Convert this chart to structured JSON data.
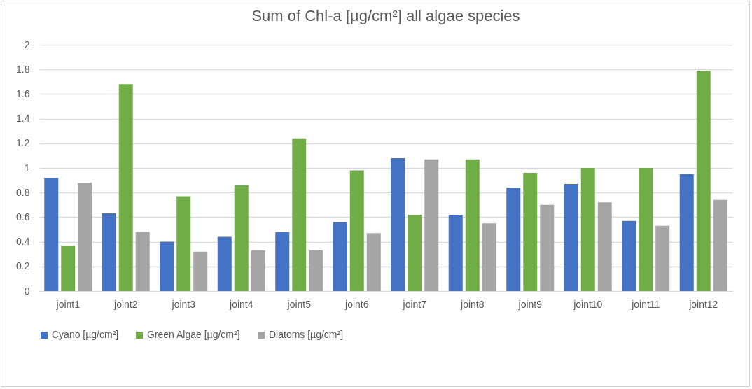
{
  "chart_data": {
    "type": "bar",
    "title": "Sum of Chl-a [µg/cm²] all algae species",
    "categories": [
      "joint1",
      "joint2",
      "joint3",
      "joint4",
      "joint5",
      "joint6",
      "joint7",
      "joint8",
      "joint9",
      "joint10",
      "joint11",
      "joint12"
    ],
    "series": [
      {
        "name": "Cyano [µg/cm²]",
        "color": "#4472c4",
        "values": [
          0.92,
          0.63,
          0.4,
          0.44,
          0.48,
          0.56,
          1.08,
          0.62,
          0.84,
          0.87,
          0.57,
          0.95
        ]
      },
      {
        "name": "Green Algae [µg/cm²]",
        "color": "#70ad47",
        "values": [
          0.37,
          1.68,
          0.77,
          0.86,
          1.24,
          0.98,
          0.62,
          1.07,
          0.96,
          1.0,
          1.0,
          1.79
        ]
      },
      {
        "name": "Diatoms [µg/cm²]",
        "color": "#a5a5a5",
        "values": [
          0.88,
          0.48,
          0.32,
          0.33,
          0.33,
          0.47,
          1.07,
          0.55,
          0.7,
          0.72,
          0.53,
          0.74
        ]
      }
    ],
    "ylim": [
      0,
      2
    ],
    "yticks": [
      0,
      0.2,
      0.4,
      0.6,
      0.8,
      1,
      1.2,
      1.4,
      1.6,
      1.8,
      2
    ],
    "grid": "y",
    "legend": "bottom"
  }
}
